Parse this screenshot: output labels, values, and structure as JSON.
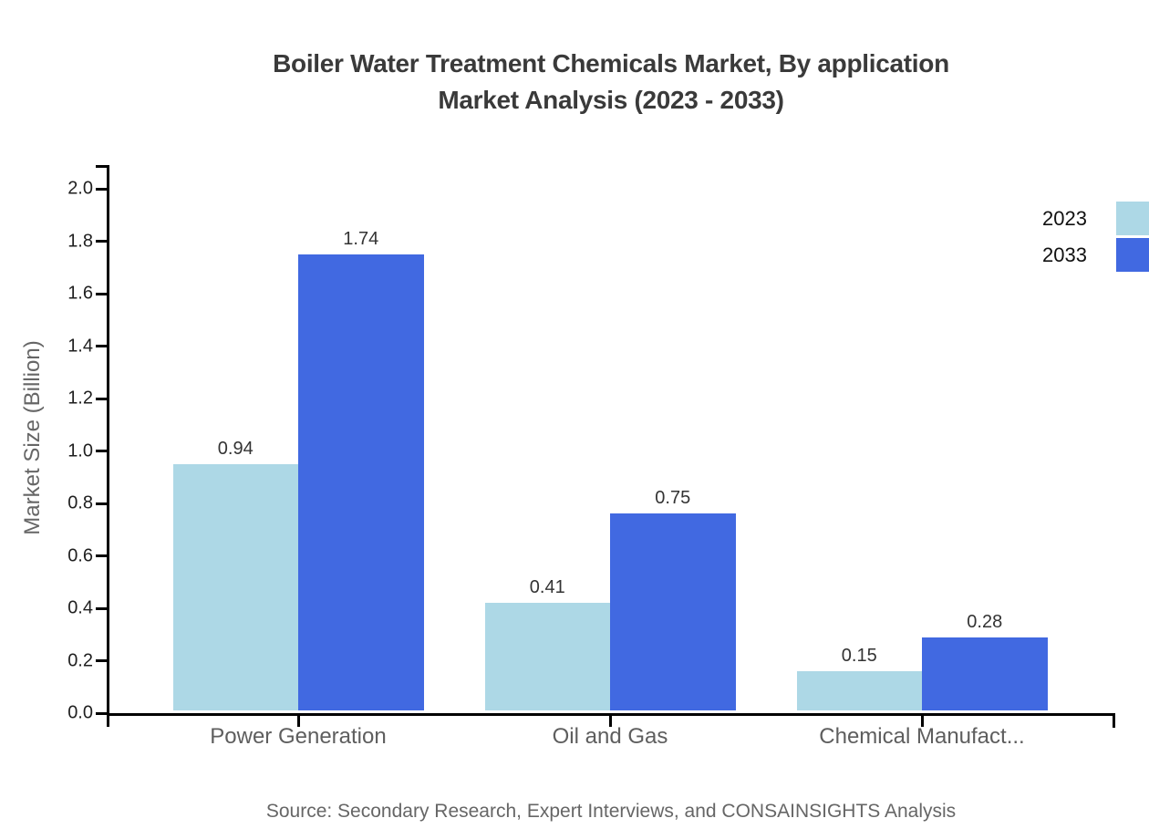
{
  "title": {
    "line1": "Boiler Water Treatment Chemicals Market, By application",
    "line2": "Market Analysis (2023 - 2033)"
  },
  "source": "Source: Secondary Research, Expert Interviews, and CONSAINSIGHTS Analysis",
  "chart_data": {
    "type": "bar",
    "title": "Boiler Water Treatment Chemicals Market, By application Market Analysis (2023 - 2033)",
    "categories": [
      "Power Generation",
      "Oil and Gas",
      "Chemical Manufact..."
    ],
    "series": [
      {
        "name": "2023",
        "color": "#ADD8E6",
        "values": [
          0.94,
          0.41,
          0.15
        ]
      },
      {
        "name": "2033",
        "color": "#4169E1",
        "values": [
          1.74,
          0.75,
          0.28
        ]
      }
    ],
    "xlabel": "",
    "ylabel": "Market Size (Billion)",
    "ylim": [
      0.0,
      2.0
    ],
    "ytick_step": 0.2,
    "value_labels": true,
    "grid": false,
    "legend_position": "top-right",
    "axis_color": "#000000",
    "background_color": "#ffffff"
  }
}
